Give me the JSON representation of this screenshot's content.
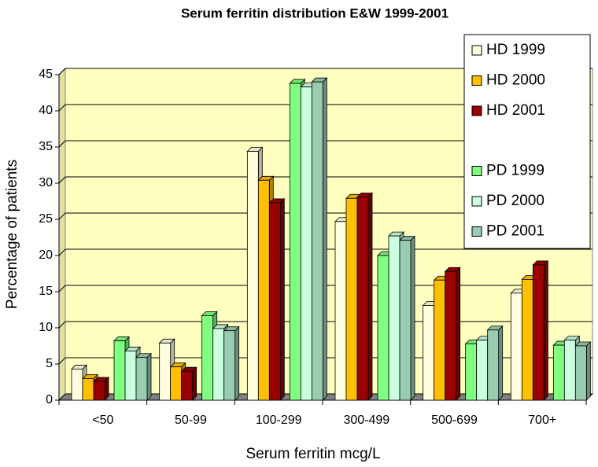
{
  "chart_data": {
    "type": "bar",
    "title": "Serum ferritin distribution E&W 1999-2001",
    "x_label": "Serum ferritin mcg/L",
    "y_label": "Percentage of patients",
    "categories": [
      "<50",
      "50-99",
      "100-299",
      "300-499",
      "500-699",
      "700+"
    ],
    "series": [
      {
        "name": "HD 1999",
        "color": "#ffffe0",
        "values": [
          4.3,
          7.9,
          34.4,
          24.7,
          13.1,
          14.8
        ]
      },
      {
        "name": "HD 2000",
        "color": "#ffc000",
        "values": [
          3.0,
          4.6,
          30.4,
          27.9,
          16.6,
          16.7
        ]
      },
      {
        "name": "HD 2001",
        "color": "#990000",
        "values": [
          2.6,
          4.0,
          27.3,
          28.1,
          17.8,
          18.7
        ]
      },
      {
        "name": "PD 1999",
        "color": "#80ff80",
        "values": [
          8.2,
          11.7,
          43.8,
          20.0,
          7.8,
          7.6
        ]
      },
      {
        "name": "PD 2000",
        "color": "#ccffe0",
        "values": [
          6.8,
          9.9,
          43.3,
          22.7,
          8.3,
          8.3
        ]
      },
      {
        "name": "PD 2001",
        "color": "#99ccb0",
        "values": [
          5.9,
          9.6,
          44.0,
          22.1,
          9.7,
          7.5
        ]
      }
    ],
    "ylim": [
      0,
      45
    ],
    "yticks": [
      0,
      5,
      10,
      15,
      20,
      25,
      30,
      35,
      40,
      45
    ],
    "grid": true,
    "legend": "top-right"
  }
}
